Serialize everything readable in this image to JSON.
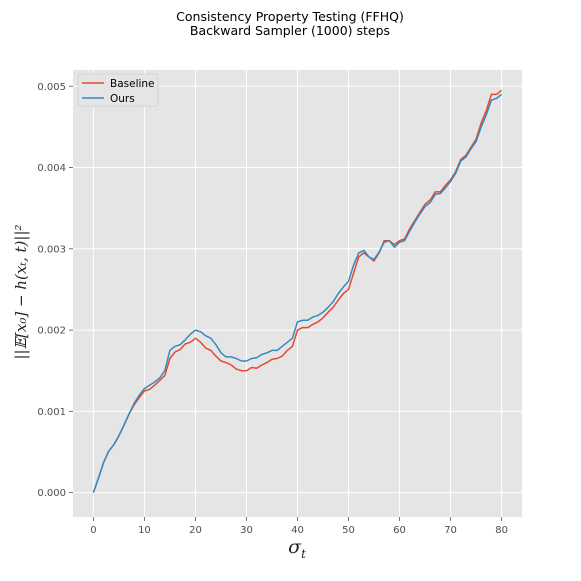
{
  "chart_data": {
    "type": "line",
    "title_lines": [
      "Consistency Property Testing (FFHQ)",
      "Backward Sampler (1000) steps"
    ],
    "xlabel": "σ",
    "xlabel_sub": "t",
    "ylabel": "||𝔼[x₀] − h(xₜ, t)||²",
    "xlim": [
      -4,
      84
    ],
    "ylim": [
      -0.0003,
      0.0052
    ],
    "xticks": [
      0,
      10,
      20,
      30,
      40,
      50,
      60,
      70,
      80
    ],
    "xtick_labels": [
      "0",
      "10",
      "20",
      "30",
      "40",
      "50",
      "60",
      "70",
      "80"
    ],
    "yticks": [
      0,
      0.001,
      0.002,
      0.003,
      0.004,
      0.005
    ],
    "ytick_labels": [
      "0.000",
      "0.001",
      "0.002",
      "0.003",
      "0.004",
      "0.005"
    ],
    "grid": true,
    "legend_position": "top-left",
    "colors": {
      "background": "#e5e5e5",
      "grid": "#ffffff",
      "baseline": "#e24a33",
      "ours": "#348abd"
    },
    "x": [
      0,
      1,
      2,
      3,
      4,
      5,
      6,
      7,
      8,
      9,
      10,
      11,
      12,
      13,
      14,
      15,
      16,
      17,
      18,
      19,
      20,
      21,
      22,
      23,
      24,
      25,
      26,
      27,
      28,
      29,
      30,
      31,
      32,
      33,
      34,
      35,
      36,
      37,
      38,
      39,
      40,
      41,
      42,
      43,
      44,
      45,
      46,
      47,
      48,
      49,
      50,
      51,
      52,
      53,
      54,
      55,
      56,
      57,
      58,
      59,
      60,
      61,
      62,
      63,
      64,
      65,
      66,
      67,
      68,
      69,
      70,
      71,
      72,
      73,
      74,
      75,
      76,
      77,
      78,
      79,
      80
    ],
    "series": [
      {
        "name": "Baseline",
        "color": "#e24a33",
        "values": [
          0.0,
          0.00018,
          0.00037,
          0.00051,
          0.00059,
          0.0007,
          0.00083,
          0.00097,
          0.00108,
          0.00117,
          0.00125,
          0.00127,
          0.00132,
          0.00138,
          0.00144,
          0.00165,
          0.00173,
          0.00176,
          0.00183,
          0.00185,
          0.0019,
          0.00185,
          0.00178,
          0.00175,
          0.00168,
          0.00162,
          0.0016,
          0.00157,
          0.00152,
          0.0015,
          0.0015,
          0.00154,
          0.00153,
          0.00157,
          0.0016,
          0.00164,
          0.00165,
          0.00168,
          0.00175,
          0.0018,
          0.002,
          0.00203,
          0.00203,
          0.00207,
          0.0021,
          0.00215,
          0.00222,
          0.00228,
          0.00237,
          0.00245,
          0.0025,
          0.0027,
          0.0029,
          0.00295,
          0.0029,
          0.00285,
          0.00295,
          0.0031,
          0.0031,
          0.00305,
          0.0031,
          0.00312,
          0.00325,
          0.00335,
          0.00345,
          0.00355,
          0.0036,
          0.0037,
          0.0037,
          0.00378,
          0.00385,
          0.00395,
          0.0041,
          0.00415,
          0.00425,
          0.00435,
          0.00455,
          0.0047,
          0.0049,
          0.0049,
          0.00495
        ]
      },
      {
        "name": "Ours",
        "color": "#348abd",
        "values": [
          0.0,
          0.00018,
          0.00037,
          0.00051,
          0.00059,
          0.0007,
          0.00083,
          0.00097,
          0.0011,
          0.0012,
          0.00128,
          0.00132,
          0.00136,
          0.00141,
          0.0015,
          0.00175,
          0.0018,
          0.00182,
          0.00188,
          0.00195,
          0.002,
          0.00198,
          0.00193,
          0.0019,
          0.00182,
          0.00172,
          0.00167,
          0.00167,
          0.00165,
          0.00162,
          0.00162,
          0.00165,
          0.00166,
          0.0017,
          0.00172,
          0.00175,
          0.00175,
          0.0018,
          0.00185,
          0.0019,
          0.0021,
          0.00212,
          0.00212,
          0.00216,
          0.00218,
          0.00222,
          0.00228,
          0.00235,
          0.00245,
          0.00253,
          0.0026,
          0.0028,
          0.00295,
          0.00298,
          0.0029,
          0.00287,
          0.00296,
          0.00308,
          0.0031,
          0.00302,
          0.00308,
          0.0031,
          0.00322,
          0.00333,
          0.00343,
          0.00352,
          0.00357,
          0.00367,
          0.00368,
          0.00375,
          0.00383,
          0.00393,
          0.00408,
          0.00413,
          0.00423,
          0.00432,
          0.0045,
          0.00465,
          0.00483,
          0.00485,
          0.0049
        ]
      }
    ]
  }
}
